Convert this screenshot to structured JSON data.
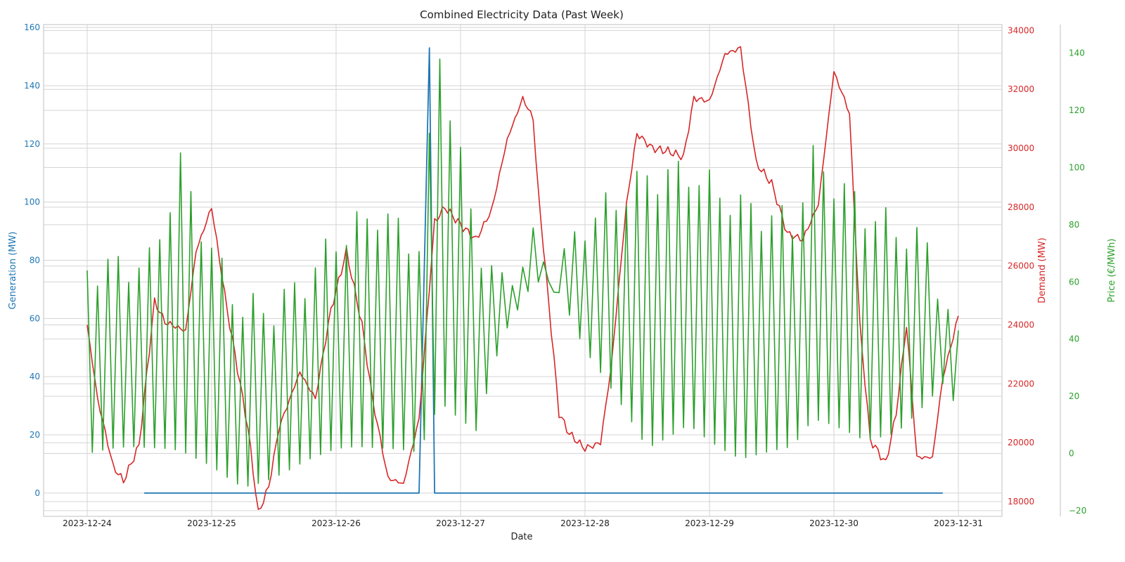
{
  "chart_data": {
    "type": "line",
    "title": "Combined Electricity Data (Past Week)",
    "xlabel": "Date",
    "x_ticks": [
      "2023-12-24",
      "2023-12-25",
      "2023-12-26",
      "2023-12-27",
      "2023-12-28",
      "2023-12-29",
      "2023-12-30",
      "2023-12-31"
    ],
    "xlim_days": [
      -0.35,
      7.35
    ],
    "grid": true,
    "axes": {
      "left": {
        "label": "Generation (MW)",
        "color": "#1f77b4",
        "ylim": [
          -8,
          161
        ],
        "ticks": [
          "0",
          "20",
          "40",
          "60",
          "80",
          "100",
          "120",
          "140",
          "160"
        ]
      },
      "right1": {
        "label": "Demand (MW)",
        "color": "#d62728",
        "ylim": [
          17500,
          34200
        ],
        "ticks": [
          "18000",
          "20000",
          "22000",
          "24000",
          "26000",
          "28000",
          "30000",
          "32000",
          "34000"
        ]
      },
      "right2": {
        "label": "Price (€/MWh)",
        "color": "#2ca02c",
        "ylim": [
          -22,
          150
        ],
        "ticks": [
          "−20",
          "0",
          "20",
          "40",
          "60",
          "80",
          "100",
          "120",
          "140"
        ]
      }
    },
    "series": [
      {
        "axis": "left",
        "color": "#1f77b4",
        "x": [
          "2023-12-24 11:00",
          "2023-12-26 16:00",
          "2023-12-26 18:00",
          "2023-12-26 19:00",
          "2023-12-30 21:00"
        ],
        "y": [
          0,
          0,
          153,
          0,
          0
        ]
      },
      {
        "axis": "right1",
        "color": "#d62728",
        "x": [
          "2023-12-24 00:00",
          "2023-12-24 02:00",
          "2023-12-24 05:00",
          "2023-12-24 07:00",
          "2023-12-24 10:00",
          "2023-12-24 13:00",
          "2023-12-24 15:00",
          "2023-12-24 19:00",
          "2023-12-24 21:00",
          "2023-12-25 00:00",
          "2023-12-25 03:00",
          "2023-12-25 05:00",
          "2023-12-25 07:00",
          "2023-12-25 09:00",
          "2023-12-25 11:00",
          "2023-12-25 13:00",
          "2023-12-25 17:00",
          "2023-12-25 20:00",
          "2023-12-25 23:00",
          "2023-12-26 02:00",
          "2023-12-26 05:00",
          "2023-12-26 07:00",
          "2023-12-26 10:00",
          "2023-12-26 13:00",
          "2023-12-26 16:00",
          "2023-12-26 19:00",
          "2023-12-26 21:00",
          "2023-12-27 00:00",
          "2023-12-27 03:00",
          "2023-12-27 06:00",
          "2023-12-27 09:00",
          "2023-12-27 12:00",
          "2023-12-27 14:00",
          "2023-12-27 15:00",
          "2023-12-27 19:00",
          "2023-12-27 21:00",
          "2023-12-28 00:00",
          "2023-12-28 03:00",
          "2023-12-28 05:00",
          "2023-12-28 08:00",
          "2023-12-28 10:00",
          "2023-12-28 13:00",
          "2023-12-28 16:00",
          "2023-12-28 19:00",
          "2023-12-28 21:00",
          "2023-12-29 00:00",
          "2023-12-29 03:00",
          "2023-12-29 06:00",
          "2023-12-29 09:00",
          "2023-12-29 12:00",
          "2023-12-29 15:00",
          "2023-12-29 18:00",
          "2023-12-29 21:00",
          "2023-12-30 00:00",
          "2023-12-30 03:00",
          "2023-12-30 05:00",
          "2023-12-30 07:00",
          "2023-12-30 10:00",
          "2023-12-30 12:00",
          "2023-12-30 14:00",
          "2023-12-30 16:00",
          "2023-12-30 19:00",
          "2023-12-30 21:00",
          "2023-12-31 00:00"
        ],
        "y": [
          24000,
          21500,
          19200,
          18700,
          19900,
          24800,
          24100,
          23800,
          26500,
          28000,
          24500,
          22500,
          20500,
          17600,
          18500,
          20500,
          22400,
          21500,
          24500,
          26500,
          24000,
          21500,
          18800,
          18600,
          20800,
          27500,
          28000,
          27400,
          26900,
          27900,
          30300,
          31700,
          31000,
          28500,
          21000,
          20300,
          19800,
          20000,
          22500,
          28100,
          30500,
          30000,
          29900,
          29700,
          31700,
          31600,
          33200,
          33400,
          29500,
          28800,
          27100,
          26900,
          28100,
          32600,
          31200,
          24000,
          20100,
          19300,
          21000,
          24000,
          19500,
          19500,
          22200,
          24300
        ]
      },
      {
        "axis": "right2",
        "color": "#2ca02c",
        "x": [
          "2023-12-24 00:00",
          "2023-12-24 12:00",
          "2023-12-24 18:00",
          "2023-12-25 00:00",
          "2023-12-25 06:00",
          "2023-12-25 12:00",
          "2023-12-25 18:00",
          "2023-12-26 00:00",
          "2023-12-26 08:00",
          "2023-12-26 16:00",
          "2023-12-26 20:00",
          "2023-12-27 03:00",
          "2023-12-27 08:00",
          "2023-12-27 14:00",
          "2023-12-27 18:00",
          "2023-12-28 00:00",
          "2023-12-28 12:00",
          "2023-12-28 20:00",
          "2023-12-29 06:00",
          "2023-12-29 16:00",
          "2023-12-29 20:00",
          "2023-12-30 06:00",
          "2023-12-30 12:00",
          "2023-12-30 18:00",
          "2023-12-30 21:00",
          "2023-12-31 00:00"
        ],
        "y_high": [
          64,
          66,
          100,
          70,
          50,
          50,
          60,
          74,
          84,
          72,
          140,
          74,
          58,
          73,
          62,
          80,
          96,
          98,
          86,
          80,
          102,
          84,
          78,
          72,
          54,
          38
        ],
        "y_low": [
          0,
          -2,
          -1,
          -3,
          -8,
          -5,
          -2,
          -1,
          -2,
          0,
          20,
          12,
          44,
          60,
          58,
          32,
          2,
          14,
          0,
          -1,
          8,
          4,
          10,
          22,
          28,
          18
        ]
      }
    ]
  }
}
